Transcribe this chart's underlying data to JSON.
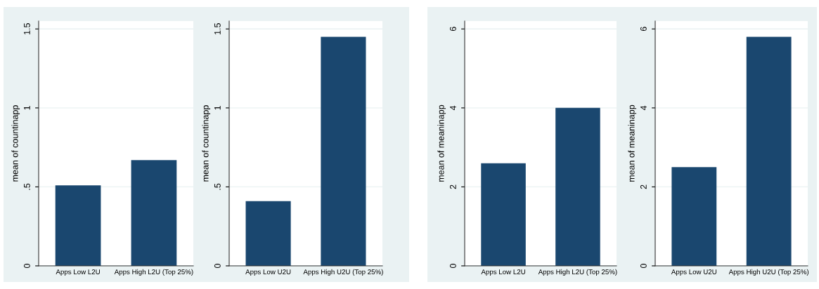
{
  "chart_data": [
    {
      "type": "bar",
      "categories": [
        "Apps Low L2U",
        "Apps High L2U (Top 25%)"
      ],
      "values": [
        0.51,
        0.67
      ],
      "color": "#1a476f",
      "ylabel": "mean of countinapp",
      "ylim": [
        0,
        1.55
      ],
      "yticks": [
        0,
        {
          "value": 0.5,
          "label": ".5"
        },
        1,
        1.5
      ],
      "grid": "y"
    },
    {
      "type": "bar",
      "categories": [
        "Apps Low U2U",
        "Apps High U2U (Top 25%)"
      ],
      "values": [
        0.41,
        1.45
      ],
      "color": "#1a476f",
      "ylabel": "mean of countinapp",
      "ylim": [
        0,
        1.55
      ],
      "yticks": [
        0,
        {
          "value": 0.5,
          "label": ".5"
        },
        1,
        1.5
      ],
      "grid": "y"
    },
    {
      "type": "bar",
      "categories": [
        "Apps Low L2U",
        "Apps High L2U (Top 25%)"
      ],
      "values": [
        2.6,
        4.0
      ],
      "color": "#1a476f",
      "ylabel": "mean of meaninapp",
      "ylim": [
        0,
        6.2
      ],
      "yticks": [
        0,
        2,
        4,
        6
      ],
      "grid": "y"
    },
    {
      "type": "bar",
      "categories": [
        "Apps Low U2U",
        "Apps High U2U (Top 25%)"
      ],
      "values": [
        2.5,
        5.8
      ],
      "color": "#1a476f",
      "ylabel": "mean of meaninapp",
      "ylim": [
        0,
        6.2
      ],
      "yticks": [
        0,
        2,
        4,
        6
      ],
      "grid": "y"
    }
  ]
}
